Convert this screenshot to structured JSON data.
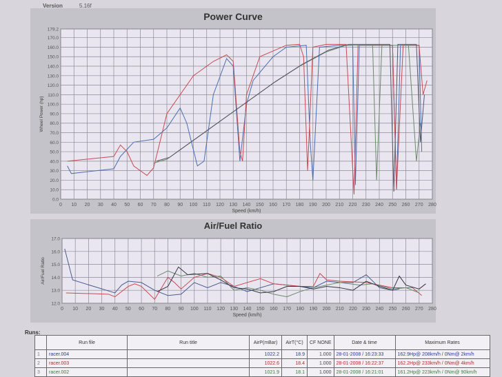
{
  "header": {
    "version_label": "Version",
    "version": "5.16f"
  },
  "chart_data": [
    {
      "type": "line",
      "title": "Power Curve",
      "xlabel": "Speed (km/h)",
      "ylabel": "Wheel Power (hp)",
      "xlim": [
        0,
        280
      ],
      "ylim": [
        0,
        179.2
      ],
      "grid": true,
      "xticks": [
        0,
        10,
        20,
        30,
        40,
        50,
        60,
        70,
        80,
        90,
        100,
        110,
        120,
        130,
        140,
        150,
        160,
        170,
        180,
        190,
        200,
        210,
        220,
        230,
        240,
        250,
        260,
        270,
        280
      ],
      "yticks": [
        "0.0",
        "10.0",
        "20.0",
        "30.0",
        "40.0",
        "50.0",
        "60.0",
        "70.0",
        "80.0",
        "90.0",
        "100.0",
        "110.0",
        "120.0",
        "130.0",
        "140.0",
        "150.0",
        "160.0",
        "170.0",
        "179.2"
      ],
      "series": [
        {
          "color": "#4a6fb0",
          "points": [
            [
              5,
              35
            ],
            [
              8,
              27
            ],
            [
              40,
              32
            ],
            [
              45,
              45
            ],
            [
              55,
              60
            ],
            [
              70,
              63
            ],
            [
              80,
              75
            ],
            [
              90,
              96
            ],
            [
              95,
              80
            ],
            [
              103,
              35
            ],
            [
              108,
              40
            ],
            [
              115,
              110
            ],
            [
              125,
              148
            ],
            [
              130,
              140
            ],
            [
              135,
              40
            ],
            [
              140,
              100
            ],
            [
              145,
              125
            ],
            [
              160,
              150
            ],
            [
              170,
              160
            ],
            [
              185,
              162
            ],
            [
              188,
              60
            ],
            [
              190,
              20
            ],
            [
              195,
              160
            ],
            [
              210,
              162
            ],
            [
              220,
              162
            ],
            [
              222,
              15
            ],
            [
              225,
              162
            ],
            [
              250,
              162
            ],
            [
              253,
              10
            ],
            [
              256,
              162
            ],
            [
              270,
              162
            ],
            [
              272,
              50
            ]
          ]
        },
        {
          "color": "#c84a55",
          "points": [
            [
              5,
              40
            ],
            [
              40,
              45
            ],
            [
              45,
              57
            ],
            [
              50,
              50
            ],
            [
              55,
              35
            ],
            [
              65,
              25
            ],
            [
              70,
              33
            ],
            [
              80,
              90
            ],
            [
              100,
              130
            ],
            [
              115,
              145
            ],
            [
              125,
              152
            ],
            [
              130,
              145
            ],
            [
              135,
              50
            ],
            [
              137,
              40
            ],
            [
              140,
              110
            ],
            [
              150,
              150
            ],
            [
              170,
              162
            ],
            [
              180,
              163
            ],
            [
              183,
              150
            ],
            [
              186,
              30
            ],
            [
              190,
              160
            ],
            [
              200,
              163
            ],
            [
              215,
              163
            ],
            [
              221,
              5
            ],
            [
              224,
              162
            ],
            [
              250,
              162
            ],
            [
              253,
              10
            ],
            [
              258,
              162
            ],
            [
              270,
              162
            ],
            [
              273,
              110
            ],
            [
              276,
              125
            ]
          ]
        },
        {
          "color": "#6a8a6a",
          "points": [
            [
              70,
              38
            ],
            [
              80,
              42
            ],
            [
              100,
              62
            ],
            [
              120,
              82
            ],
            [
              140,
              102
            ],
            [
              160,
              122
            ],
            [
              180,
              140
            ],
            [
              200,
              155
            ],
            [
              215,
              162
            ],
            [
              235,
              162
            ],
            [
              238,
              20
            ],
            [
              242,
              162
            ],
            [
              262,
              162
            ],
            [
              268,
              40
            ],
            [
              271,
              80
            ]
          ]
        },
        {
          "color": "#555566",
          "points": [
            [
              72,
              40
            ],
            [
              82,
              44
            ],
            [
              102,
              64
            ],
            [
              122,
              84
            ],
            [
              142,
              104
            ],
            [
              162,
              124
            ],
            [
              182,
              142
            ],
            [
              202,
              157
            ],
            [
              217,
              163
            ],
            [
              248,
              163
            ],
            [
              251,
              8
            ],
            [
              254,
              163
            ],
            [
              268,
              163
            ],
            [
              271,
              60
            ],
            [
              274,
              110
            ]
          ]
        }
      ]
    },
    {
      "type": "line",
      "title": "Air/Fuel Ratio",
      "xlabel": "Speed (km/h)",
      "ylabel": "Air/Fuel Ratio",
      "xlim": [
        0,
        280
      ],
      "ylim": [
        12,
        17
      ],
      "grid": true,
      "xticks": [
        0,
        10,
        20,
        30,
        40,
        50,
        60,
        70,
        80,
        90,
        100,
        110,
        120,
        130,
        140,
        150,
        160,
        170,
        180,
        190,
        200,
        210,
        220,
        230,
        240,
        250,
        260,
        270,
        280
      ],
      "yticks": [
        "12.0",
        "13.0",
        "14.0",
        "15.0",
        "16.0",
        "17.0"
      ],
      "series": [
        {
          "color": "#4a5a90",
          "points": [
            [
              2,
              16.2
            ],
            [
              8,
              13.8
            ],
            [
              40,
              12.8
            ],
            [
              45,
              13.4
            ],
            [
              50,
              13.7
            ],
            [
              60,
              13.6
            ],
            [
              70,
              13.0
            ],
            [
              80,
              12.6
            ],
            [
              90,
              12.7
            ],
            [
              100,
              13.6
            ],
            [
              110,
              13.2
            ],
            [
              120,
              13.6
            ],
            [
              130,
              13.3
            ],
            [
              140,
              12.9
            ],
            [
              150,
              13.2
            ],
            [
              160,
              13.5
            ],
            [
              170,
              13.4
            ],
            [
              190,
              13.2
            ],
            [
              200,
              13.7
            ],
            [
              210,
              13.6
            ],
            [
              220,
              13.6
            ],
            [
              230,
              14.2
            ],
            [
              240,
              13.2
            ],
            [
              250,
              13.0
            ],
            [
              255,
              13.1
            ]
          ]
        },
        {
          "color": "#c84a55",
          "points": [
            [
              3,
              12.8
            ],
            [
              35,
              12.7
            ],
            [
              40,
              12.5
            ],
            [
              50,
              13.3
            ],
            [
              55,
              13.5
            ],
            [
              60,
              13.3
            ],
            [
              70,
              12.3
            ],
            [
              80,
              14.0
            ],
            [
              85,
              13.6
            ],
            [
              90,
              13.1
            ],
            [
              100,
              14.0
            ],
            [
              110,
              14.3
            ],
            [
              120,
              14.0
            ],
            [
              130,
              13.3
            ],
            [
              150,
              13.9
            ],
            [
              160,
              13.5
            ],
            [
              180,
              13.3
            ],
            [
              190,
              13.3
            ],
            [
              195,
              14.3
            ],
            [
              200,
              13.8
            ],
            [
              210,
              13.7
            ],
            [
              230,
              13.6
            ],
            [
              250,
              13.2
            ],
            [
              265,
              13.2
            ],
            [
              272,
              12.6
            ]
          ]
        },
        {
          "color": "#6a8a6a",
          "points": [
            [
              72,
              14.1
            ],
            [
              80,
              14.5
            ],
            [
              90,
              14.1
            ],
            [
              100,
              14.3
            ],
            [
              110,
              14.0
            ],
            [
              120,
              14.1
            ],
            [
              130,
              13.0
            ],
            [
              140,
              13.2
            ],
            [
              150,
              13.0
            ],
            [
              160,
              12.7
            ],
            [
              170,
              12.5
            ],
            [
              180,
              12.9
            ],
            [
              190,
              13.2
            ],
            [
              200,
              13.4
            ],
            [
              210,
              13.6
            ],
            [
              225,
              13.4
            ],
            [
              235,
              13.5
            ],
            [
              250,
              13.1
            ],
            [
              260,
              13.2
            ],
            [
              270,
              12.8
            ]
          ]
        },
        {
          "color": "#333344",
          "points": [
            [
              72,
              12.9
            ],
            [
              80,
              13.3
            ],
            [
              88,
              14.8
            ],
            [
              95,
              14.2
            ],
            [
              110,
              14.3
            ],
            [
              120,
              13.8
            ],
            [
              130,
              13.2
            ],
            [
              140,
              13.1
            ],
            [
              150,
              12.8
            ],
            [
              160,
              12.9
            ],
            [
              170,
              13.3
            ],
            [
              180,
              13.3
            ],
            [
              190,
              13.1
            ],
            [
              200,
              13.3
            ],
            [
              210,
              13.2
            ],
            [
              220,
              13.0
            ],
            [
              230,
              13.7
            ],
            [
              240,
              13.3
            ],
            [
              250,
              13.0
            ],
            [
              255,
              14.1
            ],
            [
              260,
              13.4
            ],
            [
              270,
              13.1
            ],
            [
              275,
              13.5
            ]
          ]
        }
      ]
    }
  ],
  "runs": {
    "label": "Runs:",
    "headers": [
      "",
      "Run file",
      "Run title",
      "AirP(mBar)",
      "AirT(°C)",
      "CF NONE",
      "Date & time",
      "Maximum Rates"
    ],
    "rows": [
      {
        "n": "1",
        "file": "racer.004",
        "title": "",
        "airp": "1022.2",
        "airt": "18.9",
        "cf": "1.000",
        "date": "28-01-2008 / 16:23:33",
        "max": "162.9Hp@ 208km/h / 0Nm@ 2km/h",
        "color": "#2a3a9a"
      },
      {
        "n": "2",
        "file": "racer.003",
        "title": "",
        "airp": "1022.6",
        "airt": "18.4",
        "cf": "1.000",
        "date": "28-01-2008 / 16:22:37",
        "max": "162.2Hp@ 233km/h / 0Nm@ 4km/h",
        "color": "#b02a2a"
      },
      {
        "n": "3",
        "file": "racer.002",
        "title": "",
        "airp": "1021.9",
        "airt": "18.1",
        "cf": "1.000",
        "date": "28-01-2008 / 16:21:01",
        "max": "161.2Hp@ 223km/h / 0Nm@ 90km/h",
        "color": "#3a7a3a"
      }
    ]
  }
}
